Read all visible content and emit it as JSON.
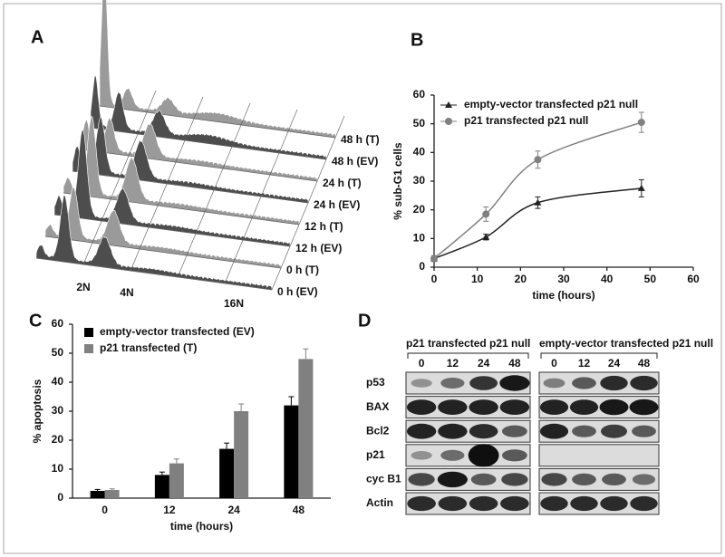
{
  "panel_a": {
    "letter": "A",
    "traces": [
      "48 h (T)",
      "48 h (EV)",
      "24 h (T)",
      "24 h (EV)",
      "12 h (T)",
      "12 h (EV)",
      "0 h (T)",
      "0 h (EV)"
    ],
    "ploidy_labels": [
      "2N",
      "4N",
      "16N"
    ]
  },
  "chart_data": [
    {
      "type": "line",
      "letter": "B",
      "xlabel": "time (hours)",
      "ylabel": "% sub-G1 cells",
      "x": [
        0,
        12,
        24,
        48
      ],
      "xlim": [
        0,
        60
      ],
      "xticks": [
        0,
        10,
        20,
        30,
        40,
        50,
        60
      ],
      "ylim": [
        0,
        60
      ],
      "yticks": [
        0,
        10,
        20,
        30,
        40,
        50,
        60
      ],
      "series": [
        {
          "name": "empty-vector transfected p21 null",
          "color": "#222222",
          "marker": "triangle",
          "values": [
            3,
            10.5,
            22.5,
            27.5
          ],
          "errors": [
            1,
            1,
            2,
            3
          ]
        },
        {
          "name": "p21 transfected p21 null",
          "color": "#808080",
          "marker": "circle",
          "values": [
            3,
            18.5,
            37.5,
            50.5
          ],
          "errors": [
            1,
            2.5,
            3,
            3.5
          ]
        }
      ]
    },
    {
      "type": "bar",
      "letter": "C",
      "xlabel": "time (hours)",
      "ylabel": "% apoptosis",
      "categories": [
        "0",
        "12",
        "24",
        "48"
      ],
      "ylim": [
        0,
        60
      ],
      "yticks": [
        0,
        10,
        20,
        30,
        40,
        50,
        60
      ],
      "series": [
        {
          "name": "empty-vector transfected (EV)",
          "color": "#000000",
          "values": [
            2.5,
            8,
            17,
            32
          ],
          "errors": [
            0.5,
            1,
            2,
            3
          ]
        },
        {
          "name": "p21 transfected (T)",
          "color": "#808080",
          "values": [
            2.8,
            12,
            30,
            48
          ],
          "errors": [
            0.4,
            1.5,
            2.5,
            3.5
          ]
        }
      ]
    }
  ],
  "panel_d": {
    "letter": "D",
    "groups": [
      {
        "label": "p21 transfected p21 null",
        "lanes": [
          "0",
          "12",
          "24",
          "48"
        ]
      },
      {
        "label": "empty-vector transfected p21 null",
        "lanes": [
          "0",
          "12",
          "24",
          "48"
        ]
      }
    ],
    "proteins": [
      "p53",
      "BAX",
      "Bcl2",
      "p21",
      "cyc B1",
      "Actin"
    ]
  }
}
